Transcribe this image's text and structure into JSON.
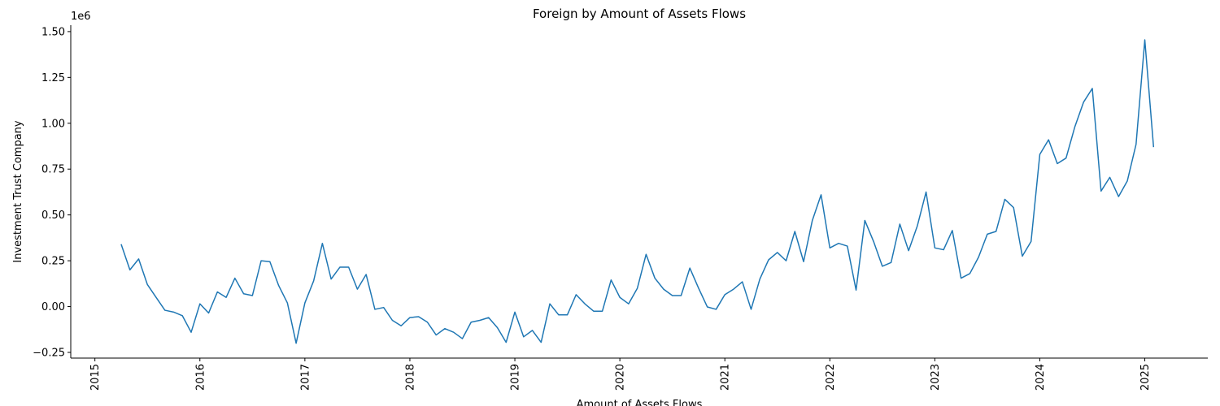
{
  "chart_data": {
    "type": "line",
    "title": "Foreign by Amount of Assets Flows",
    "xlabel": "Amount of Assets Flows",
    "ylabel": "Investment Trust Company",
    "y_offset_label": "1e6",
    "color": "#1f77b4",
    "x": [
      "2015-04",
      "2015-05",
      "2015-06",
      "2015-07",
      "2015-08",
      "2015-09",
      "2015-10",
      "2015-11",
      "2015-12",
      "2016-01",
      "2016-02",
      "2016-03",
      "2016-04",
      "2016-05",
      "2016-06",
      "2016-07",
      "2016-08",
      "2016-09",
      "2016-10",
      "2016-11",
      "2016-12",
      "2017-01",
      "2017-02",
      "2017-03",
      "2017-04",
      "2017-05",
      "2017-06",
      "2017-07",
      "2017-08",
      "2017-09",
      "2017-10",
      "2017-11",
      "2017-12",
      "2018-01",
      "2018-02",
      "2018-03",
      "2018-04",
      "2018-05",
      "2018-06",
      "2018-07",
      "2018-08",
      "2018-09",
      "2018-10",
      "2018-11",
      "2018-12",
      "2019-01",
      "2019-02",
      "2019-03",
      "2019-04",
      "2019-05",
      "2019-06",
      "2019-07",
      "2019-08",
      "2019-09",
      "2019-10",
      "2019-11",
      "2019-12",
      "2020-01",
      "2020-02",
      "2020-03",
      "2020-04",
      "2020-05",
      "2020-06",
      "2020-07",
      "2020-08",
      "2020-09",
      "2020-10",
      "2020-11",
      "2020-12",
      "2021-01",
      "2021-02",
      "2021-03",
      "2021-04",
      "2021-05",
      "2021-06",
      "2021-07",
      "2021-08",
      "2021-09",
      "2021-10",
      "2021-11",
      "2021-12",
      "2022-01",
      "2022-02",
      "2022-03",
      "2022-04",
      "2022-05",
      "2022-06",
      "2022-07",
      "2022-08",
      "2022-09",
      "2022-10",
      "2022-11",
      "2022-12",
      "2023-01",
      "2023-02",
      "2023-03",
      "2023-04",
      "2023-05",
      "2023-06",
      "2023-07",
      "2023-08",
      "2023-09",
      "2023-10",
      "2023-11",
      "2023-12",
      "2024-01",
      "2024-02",
      "2024-03",
      "2024-04",
      "2024-05",
      "2024-06",
      "2024-07",
      "2024-08",
      "2024-09",
      "2024-10",
      "2024-11",
      "2024-12",
      "2025-01",
      "2025-02"
    ],
    "values": [
      0.34,
      0.2,
      0.26,
      0.12,
      0.05,
      -0.02,
      -0.03,
      -0.05,
      -0.14,
      0.015,
      -0.035,
      0.08,
      0.05,
      0.155,
      0.07,
      0.06,
      0.25,
      0.245,
      0.115,
      0.02,
      -0.2,
      0.02,
      0.14,
      0.345,
      0.15,
      0.215,
      0.215,
      0.095,
      0.175,
      -0.015,
      -0.005,
      -0.075,
      -0.105,
      -0.06,
      -0.055,
      -0.085,
      -0.155,
      -0.12,
      -0.14,
      -0.175,
      -0.085,
      -0.075,
      -0.06,
      -0.115,
      -0.195,
      -0.03,
      -0.165,
      -0.13,
      -0.195,
      0.015,
      -0.045,
      -0.045,
      0.065,
      0.015,
      -0.025,
      -0.025,
      0.145,
      0.05,
      0.015,
      0.1,
      0.285,
      0.155,
      0.095,
      0.06,
      0.06,
      0.21,
      0.1,
      -0.002,
      -0.015,
      0.065,
      0.095,
      0.135,
      -0.015,
      0.15,
      0.255,
      0.295,
      0.25,
      0.41,
      0.245,
      0.47,
      0.61,
      0.32,
      0.345,
      0.33,
      0.09,
      0.47,
      0.355,
      0.22,
      0.24,
      0.45,
      0.305,
      0.44,
      0.625,
      0.32,
      0.31,
      0.415,
      0.155,
      0.18,
      0.27,
      0.395,
      0.41,
      0.585,
      0.54,
      0.275,
      0.355,
      0.83,
      0.91,
      0.78,
      0.81,
      0.98,
      1.115,
      1.19,
      0.63,
      0.705,
      0.6,
      0.685,
      0.885,
      1.455,
      0.87
    ],
    "xlim": [
      2014.77,
      2025.6
    ],
    "xticks": [
      2015,
      2016,
      2017,
      2018,
      2019,
      2020,
      2021,
      2022,
      2023,
      2024,
      2025
    ],
    "ylim": [
      -0.281,
      1.535
    ],
    "yticks": [
      {
        "value": -0.25,
        "label": "−0.25"
      },
      {
        "value": 0,
        "label": "0.00"
      },
      0.25,
      {
        "value": 0.5,
        "label": "0.50"
      },
      0.75,
      {
        "value": 1,
        "label": "1.00"
      },
      1.25,
      {
        "value": 1.5,
        "label": "1.50"
      }
    ]
  }
}
